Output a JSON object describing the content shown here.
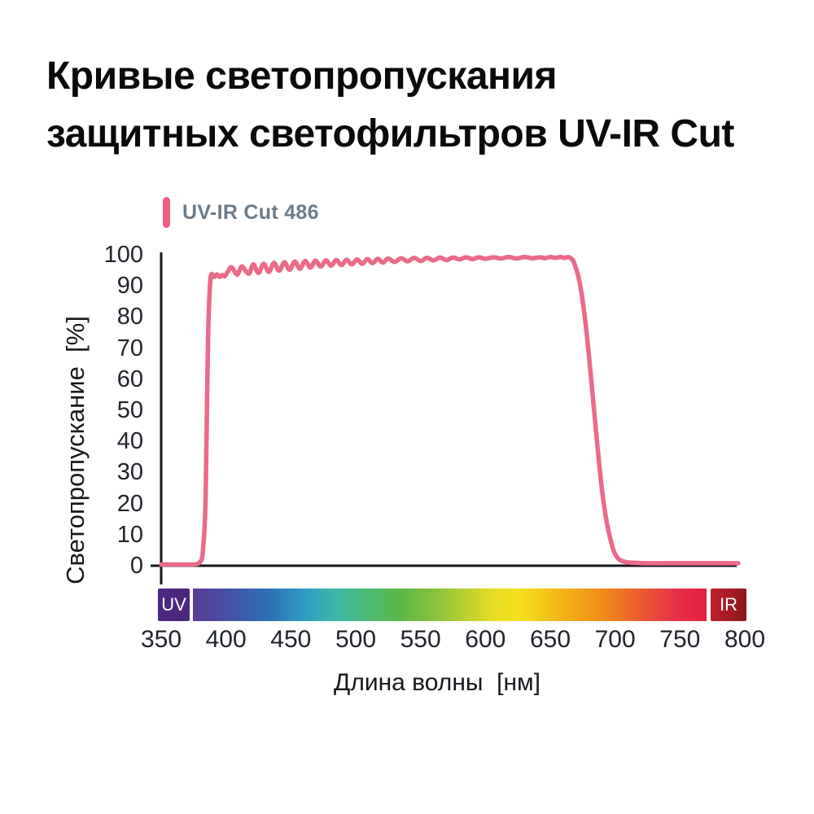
{
  "title": {
    "line1": "Кривые светопропускания",
    "line2": "защитных светофильтров UV-IR Cut"
  },
  "legend": {
    "label": "UV-IR Cut 486",
    "swatch_color": "#ec6183"
  },
  "axes": {
    "x_label": "Длина волны  [нм]",
    "y_label": "Светопропускание  [%]",
    "axis_color": "#17181c"
  },
  "spectrum_bar": {
    "uv_label": "UV",
    "ir_label": "IR",
    "uv_color": "#4b287d",
    "ir_gradient": [
      "#c1212b",
      "#8c181d"
    ],
    "gradient_stops": [
      "#5a3a94 0%",
      "#4156a8 8%",
      "#2d70b6 15%",
      "#2f9ec2 22%",
      "#3cb8a8 28%",
      "#4cba74 34%",
      "#58b748 40%",
      "#87c23d 47%",
      "#bad032 53%",
      "#e3dc24 58%",
      "#f2e01c 63%",
      "#f4c91a 68%",
      "#f4ad18 73%",
      "#f18f17 79%",
      "#ee6f24 84%",
      "#e94f36 89%",
      "#e63148 94%",
      "#e52040 100%"
    ]
  },
  "chart_data": {
    "type": "line",
    "title": "Кривые светопропускания защитных светофильтров UV-IR Cut",
    "xlabel": "Длина волны [нм]",
    "ylabel": "Светопропускание [%]",
    "xlim": [
      350,
      800
    ],
    "ylim": [
      0,
      100
    ],
    "x_ticks": [
      350,
      400,
      450,
      500,
      550,
      600,
      650,
      700,
      750,
      800
    ],
    "y_ticks": [
      0,
      10,
      20,
      30,
      40,
      50,
      60,
      70,
      80,
      90,
      100
    ],
    "grid": false,
    "legend_position": "top-left",
    "series": [
      {
        "name": "UV-IR Cut 486",
        "color": "#ea6a89",
        "points": [
          [
            350,
            0.4
          ],
          [
            358,
            0.4
          ],
          [
            366,
            0.4
          ],
          [
            373,
            0.4
          ],
          [
            377,
            0.5
          ],
          [
            380,
            1.2
          ],
          [
            382,
            4
          ],
          [
            384,
            18
          ],
          [
            385,
            42
          ],
          [
            386,
            70
          ],
          [
            387,
            85
          ],
          [
            388,
            92
          ],
          [
            389,
            93.8
          ],
          [
            391,
            92.9
          ],
          [
            393,
            93.7
          ],
          [
            395,
            92.9
          ],
          [
            397,
            93.5
          ],
          [
            399,
            93.1
          ],
          [
            401,
            94.3
          ],
          [
            404,
            96.0
          ],
          [
            407,
            94.4
          ],
          [
            409,
            93.7
          ],
          [
            412,
            96.2
          ],
          [
            415,
            94.9
          ],
          [
            418,
            94.0
          ],
          [
            421,
            96.9
          ],
          [
            425,
            94.2
          ],
          [
            429,
            97.1
          ],
          [
            433,
            94.5
          ],
          [
            437,
            97.4
          ],
          [
            441,
            94.9
          ],
          [
            445,
            97.6
          ],
          [
            449,
            95.2
          ],
          [
            453,
            97.8
          ],
          [
            457,
            95.5
          ],
          [
            461,
            98.0
          ],
          [
            465,
            95.9
          ],
          [
            469,
            98.1
          ],
          [
            473,
            96.2
          ],
          [
            477,
            98.2
          ],
          [
            481,
            96.5
          ],
          [
            485,
            98.3
          ],
          [
            489,
            96.7
          ],
          [
            493,
            98.4
          ],
          [
            497,
            96.9
          ],
          [
            501,
            98.5
          ],
          [
            505,
            97.1
          ],
          [
            509,
            98.6
          ],
          [
            513,
            97.3
          ],
          [
            517,
            98.7
          ],
          [
            521,
            97.5
          ],
          [
            525,
            98.8
          ],
          [
            530,
            97.7
          ],
          [
            535,
            98.9
          ],
          [
            540,
            97.9
          ],
          [
            545,
            99.0
          ],
          [
            550,
            98.0
          ],
          [
            555,
            99.0
          ],
          [
            560,
            98.2
          ],
          [
            565,
            99.1
          ],
          [
            570,
            98.3
          ],
          [
            575,
            99.1
          ],
          [
            580,
            98.5
          ],
          [
            585,
            99.2
          ],
          [
            590,
            98.6
          ],
          [
            595,
            99.2
          ],
          [
            600,
            98.7
          ],
          [
            606,
            99.2
          ],
          [
            612,
            98.8
          ],
          [
            618,
            99.3
          ],
          [
            624,
            98.8
          ],
          [
            630,
            99.3
          ],
          [
            636,
            98.9
          ],
          [
            642,
            99.2
          ],
          [
            646,
            98.9
          ],
          [
            650,
            99.3
          ],
          [
            654,
            99.0
          ],
          [
            658,
            99.3
          ],
          [
            661,
            99.0
          ],
          [
            664,
            99.3
          ],
          [
            666,
            98.8
          ],
          [
            668,
            97.8
          ],
          [
            671,
            94.0
          ],
          [
            674,
            88.0
          ],
          [
            678,
            75.0
          ],
          [
            682,
            58.0
          ],
          [
            686,
            40.0
          ],
          [
            690,
            24.0
          ],
          [
            694,
            13.0
          ],
          [
            698,
            6.0
          ],
          [
            701,
            3.0
          ],
          [
            704,
            1.8
          ],
          [
            708,
            1.2
          ],
          [
            712,
            1.0
          ],
          [
            718,
            0.9
          ],
          [
            728,
            0.8
          ],
          [
            745,
            0.8
          ],
          [
            765,
            0.8
          ],
          [
            782,
            0.8
          ],
          [
            795,
            0.8
          ]
        ]
      }
    ]
  }
}
